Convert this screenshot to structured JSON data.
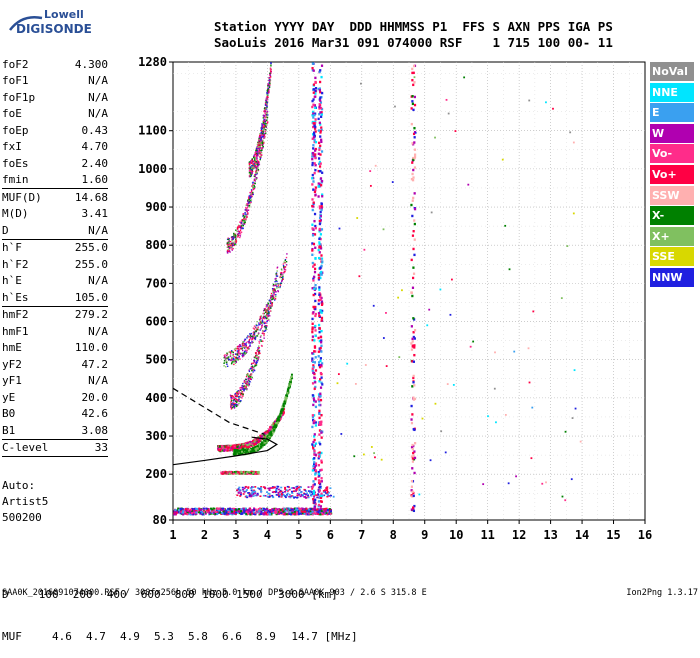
{
  "logo": {
    "line1": "Lowell",
    "line2": "DIGISONDE"
  },
  "header": {
    "line1": "Station YYYY DAY  DDD HHMMSS P1  FFS S AXN PPS IGA PS",
    "line2": "SaoLuis 2016 Mar31 091 074000 RSF    1 715 100 00- 11"
  },
  "params": [
    {
      "name": "foF2",
      "value": "4.300"
    },
    {
      "name": "foF1",
      "value": "N/A"
    },
    {
      "name": "foF1p",
      "value": "N/A"
    },
    {
      "name": "foE",
      "value": "N/A"
    },
    {
      "name": "foEp",
      "value": "0.43"
    },
    {
      "name": "fxI",
      "value": "4.70"
    },
    {
      "name": "foEs",
      "value": "2.40"
    },
    {
      "name": "fmin",
      "value": "1.60"
    },
    {
      "divider": true
    },
    {
      "name": "MUF(D)",
      "value": "14.68"
    },
    {
      "name": "M(D)",
      "value": "3.41"
    },
    {
      "name": "D",
      "value": "N/A"
    },
    {
      "divider": true
    },
    {
      "name": "h`F",
      "value": "255.0"
    },
    {
      "name": "h`F2",
      "value": "255.0"
    },
    {
      "name": "h`E",
      "value": "N/A"
    },
    {
      "name": "h`Es",
      "value": "105.0"
    },
    {
      "divider": true
    },
    {
      "name": "hmF2",
      "value": "279.2"
    },
    {
      "name": "hmF1",
      "value": "N/A"
    },
    {
      "name": "hmE",
      "value": "110.0"
    },
    {
      "name": "yF2",
      "value": "47.2"
    },
    {
      "name": "yF1",
      "value": "N/A"
    },
    {
      "name": "yE",
      "value": "20.0"
    },
    {
      "name": "B0",
      "value": "42.6"
    },
    {
      "name": "B1",
      "value": "3.08"
    },
    {
      "divider": true
    },
    {
      "name": "C-level",
      "value": "33"
    },
    {
      "divider": true
    }
  ],
  "autoscale": {
    "line1": "Auto:",
    "line2": "Artist5",
    "line3": "500200"
  },
  "legend": [
    {
      "label": "NoVal",
      "color": "#909090"
    },
    {
      "label": "NNE",
      "color": "#00e5ff"
    },
    {
      "label": "E",
      "color": "#3aa0f0"
    },
    {
      "label": "W",
      "color": "#b000b0"
    },
    {
      "label": "Vo-",
      "color": "#ff2c8a"
    },
    {
      "label": "Vo+",
      "color": "#ff0044"
    },
    {
      "label": "SSW",
      "color": "#ffb0b0"
    },
    {
      "label": "X-",
      "color": "#008000"
    },
    {
      "label": "X+",
      "color": "#80c060"
    },
    {
      "label": "SSE",
      "color": "#d8d800"
    },
    {
      "label": "NNW",
      "color": "#2020e0"
    }
  ],
  "muf_table": {
    "d_label": "D",
    "d_values": [
      "100",
      "200",
      "400",
      "600",
      "800",
      "1000",
      "1500",
      "3000"
    ],
    "d_unit": "[km]",
    "muf_label": "MUF",
    "muf_values": [
      "4.6",
      "4.7",
      "4.9",
      "5.3",
      "5.8",
      "6.6",
      "8.9",
      "14.7"
    ],
    "muf_unit": "[MHz]"
  },
  "footer": {
    "left": "SAA0K_2016091074000.RSF / 300fx256h 50 kHz 5.0 km / DPS-4 SAA0K 903 / 2.6 S 315.8 E",
    "right": "Ion2Png 1.3.17"
  },
  "chart_data": {
    "type": "scatter",
    "xlim": [
      1,
      16
    ],
    "ylim": [
      80,
      1280
    ],
    "x_ticks": [
      "1",
      "2",
      "3",
      "4",
      "5",
      "6",
      "7",
      "8",
      "9",
      "10",
      "11",
      "12",
      "13",
      "14",
      "15",
      "16"
    ],
    "y_ticks": [
      "80",
      "200",
      "300",
      "400",
      "500",
      "600",
      "700",
      "800",
      "900",
      "1000",
      "1100",
      "1280"
    ],
    "y_tick_values": [
      80,
      200,
      300,
      400,
      500,
      600,
      700,
      800,
      900,
      1000,
      1100,
      1280
    ],
    "grid": true,
    "legend_placement": "right",
    "traces": {
      "es_layer": {
        "x_start": 1.0,
        "x_end": 6.0,
        "height": 105,
        "spread": 8
      },
      "f2_trace": {
        "x_start": 2.4,
        "x_end": 4.5,
        "h_start": 270,
        "h_end": 370
      },
      "x_trace": {
        "x_start": 2.9,
        "x_end": 4.75,
        "h_start": 260,
        "h_end": 460
      },
      "multi_hops": [
        {
          "x_start": 2.8,
          "x_end": 4.3,
          "h_start": 390,
          "h_end": 730
        },
        {
          "x_start": 2.6,
          "x_end": 4.6,
          "h_start": 500,
          "h_end": 760
        },
        {
          "x_start": 2.7,
          "x_end": 4.0,
          "h_start": 800,
          "h_end": 1150
        },
        {
          "x_start": 3.4,
          "x_end": 4.1,
          "h_start": 1000,
          "h_end": 1270
        }
      ],
      "interference_columns": [
        5.45,
        5.65,
        8.6
      ],
      "profile_curve": [
        [
          1.0,
          225
        ],
        [
          2.0,
          236
        ],
        [
          3.0,
          248
        ],
        [
          4.0,
          262
        ],
        [
          4.3,
          278
        ],
        [
          4.0,
          292
        ],
        [
          3.5,
          297
        ]
      ],
      "dashed_line": [
        [
          1.0,
          425
        ],
        [
          2.8,
          335
        ],
        [
          3.9,
          305
        ]
      ]
    }
  }
}
